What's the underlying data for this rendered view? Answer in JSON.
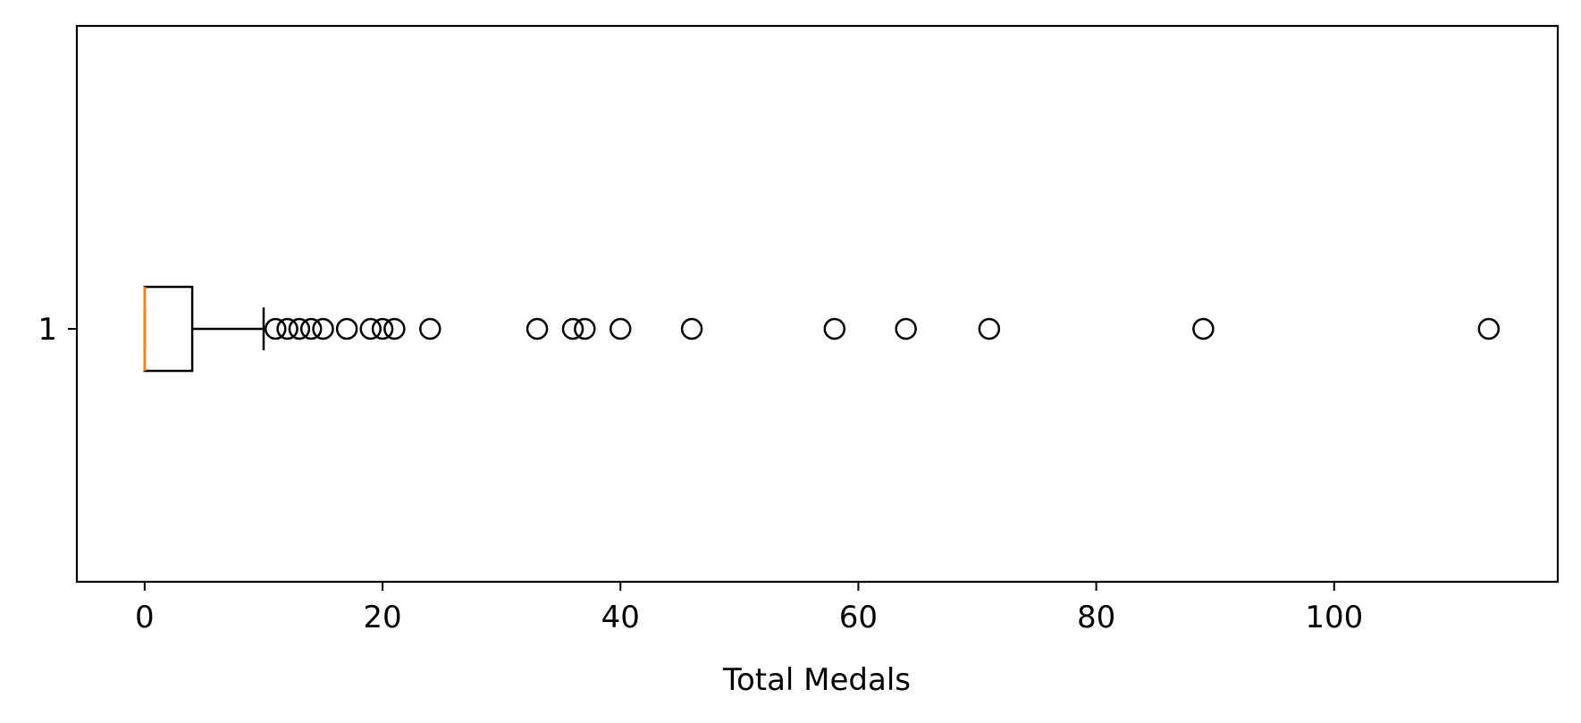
{
  "chart_data": {
    "type": "boxplot",
    "orientation": "horizontal",
    "xlabel": "Total Medals",
    "ylabel": "",
    "xlim": [
      -5.7,
      118.8
    ],
    "x_ticks": [
      0,
      20,
      40,
      60,
      80,
      100
    ],
    "y_ticks": [
      "1"
    ],
    "grid": false,
    "series": [
      {
        "position": 1,
        "min": 0,
        "q1": 0,
        "median": 0,
        "q3": 4,
        "whisker_low": 0,
        "whisker_high": 10,
        "outliers": [
          11,
          12,
          13,
          14,
          15,
          17,
          19,
          20,
          21,
          24,
          33,
          36,
          37,
          40,
          46,
          58,
          64,
          71,
          89,
          113
        ]
      }
    ],
    "colors": {
      "box": "#000000",
      "median": "#ff7f0e",
      "outlier": "#000000"
    }
  }
}
